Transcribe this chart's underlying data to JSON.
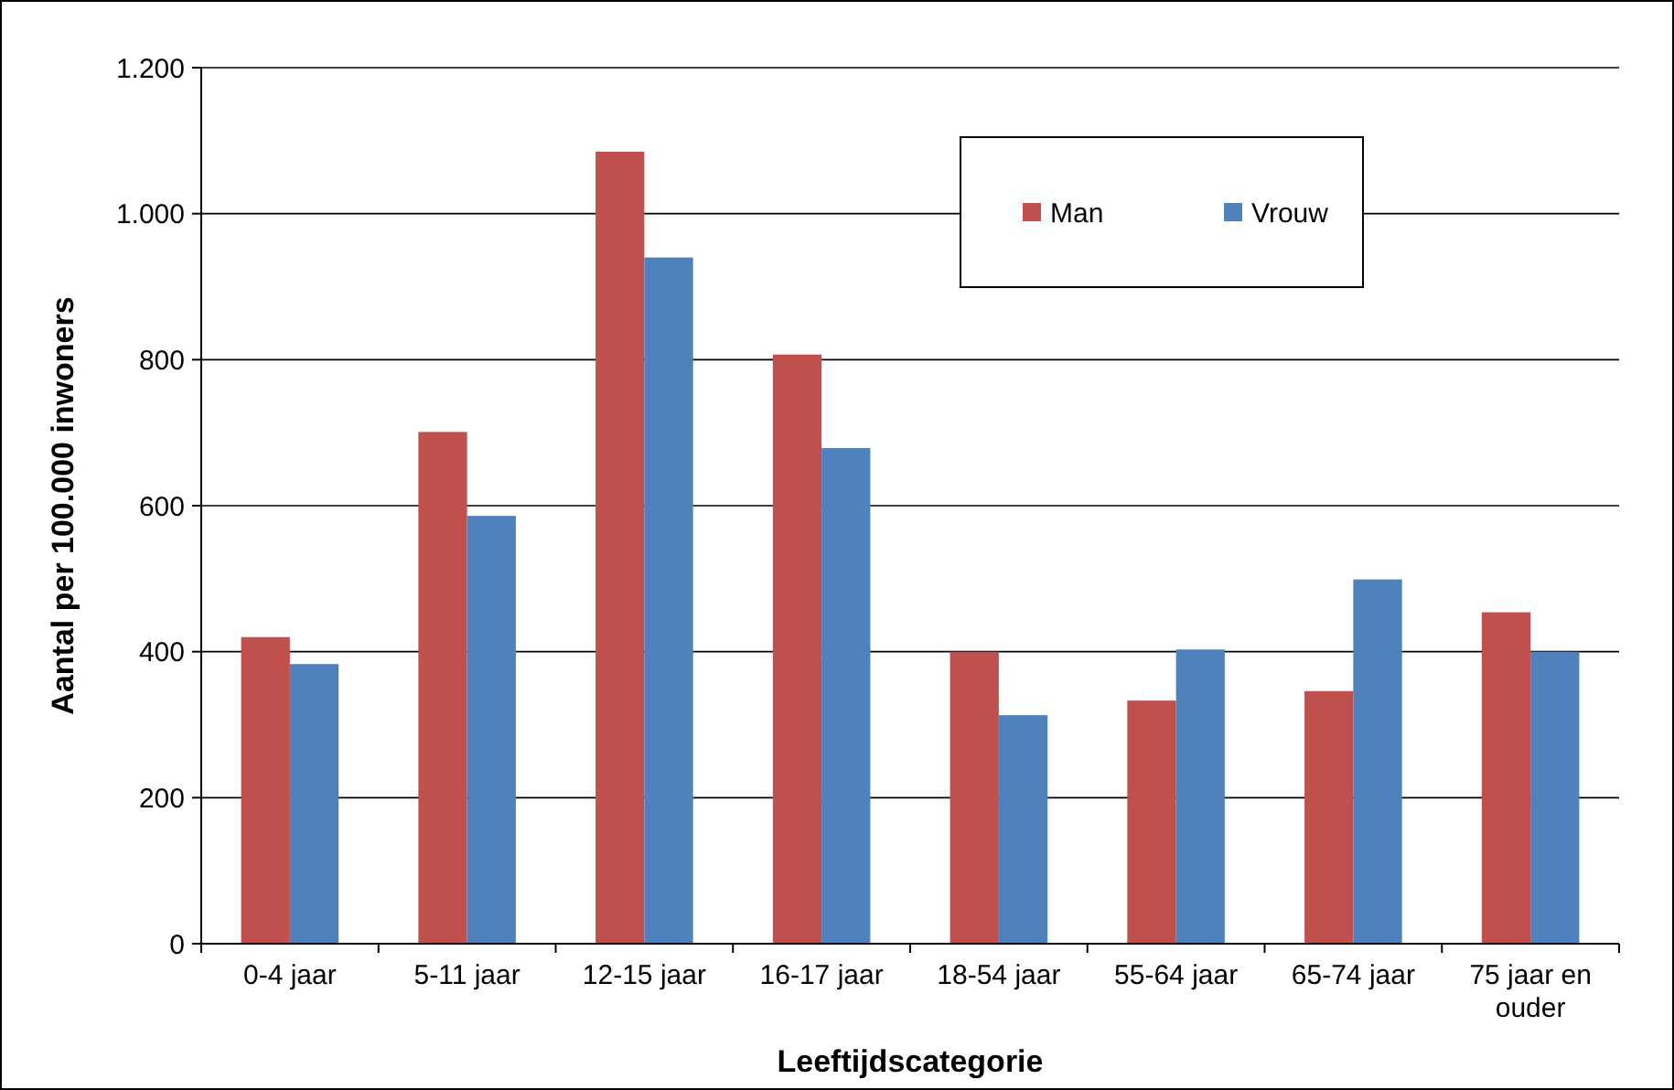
{
  "chart_data": {
    "type": "bar",
    "xlabel": "Leeftijdscategorie",
    "ylabel": "Aantal per 100.000 inwoners",
    "categories": [
      "0-4 jaar",
      "5-11 jaar",
      "12-15 jaar",
      "16-17 jaar",
      "18-54 jaar",
      "55-64 jaar",
      "65-74 jaar",
      "75 jaar en ouder"
    ],
    "series": [
      {
        "name": "Man",
        "color": "#c0504d",
        "values": [
          420,
          701,
          1085,
          807,
          400,
          333,
          346,
          454
        ]
      },
      {
        "name": "Vrouw",
        "color": "#4f81bd",
        "values": [
          383,
          586,
          940,
          679,
          313,
          403,
          499,
          400
        ]
      }
    ],
    "ylim": [
      0,
      1200
    ],
    "yticks": [
      0,
      200,
      400,
      600,
      800,
      {
        "value": 1000,
        "label": "1.000"
      },
      {
        "value": 1200,
        "label": "1.200"
      }
    ],
    "grid": "y",
    "legend": "top right"
  }
}
